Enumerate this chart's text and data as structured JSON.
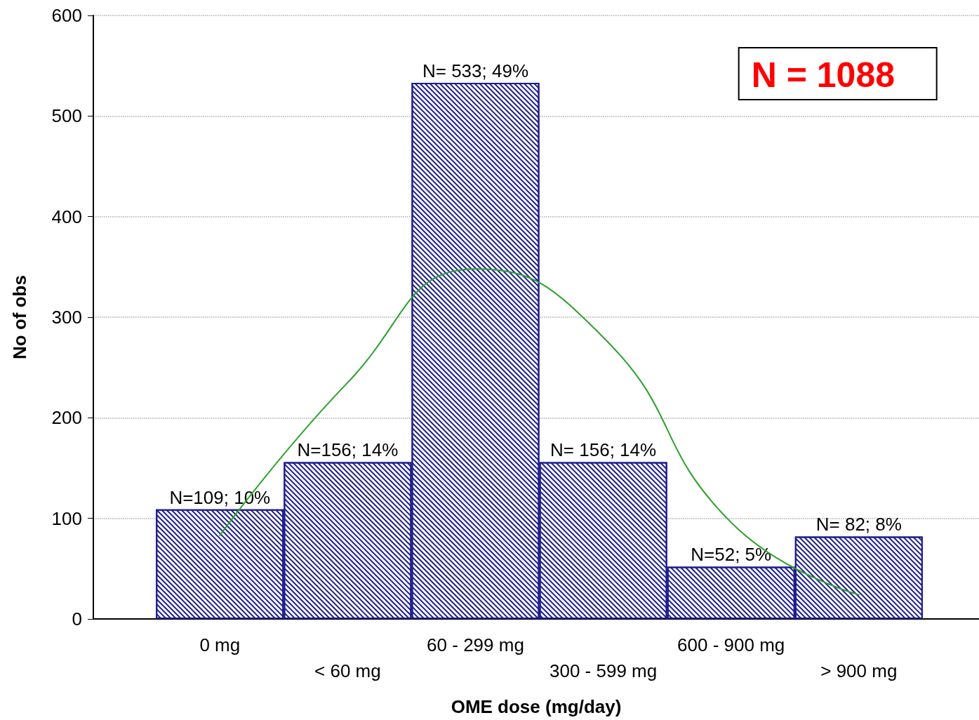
{
  "chart_data": {
    "type": "bar",
    "xlabel": "OME dose (mg/day)",
    "ylabel": "No of obs",
    "categories": [
      "0 mg",
      "< 60 mg",
      "60 - 299 mg",
      "300 - 599 mg",
      "600 - 900 mg",
      "> 900 mg"
    ],
    "series": [
      {
        "color": "#1c1c8c",
        "values": [
          109,
          156,
          533,
          156,
          52,
          82
        ],
        "value_labels": [
          "N=109; 10%",
          "N=156; 14%",
          "N= 533; 49%",
          "N= 156; 14%",
          "N=52; 5%",
          "N= 82; 8%"
        ]
      },
      {
        "type": "line",
        "color": "#2ca02c",
        "values": [
          83,
          235,
          348,
          280,
          96,
          24
        ]
      }
    ],
    "ylim": [
      0,
      600
    ],
    "yticks": [
      0,
      100,
      200,
      300,
      400,
      500,
      600
    ],
    "grid": "y",
    "marker": "none",
    "annotations": [
      "N = 1088"
    ]
  }
}
